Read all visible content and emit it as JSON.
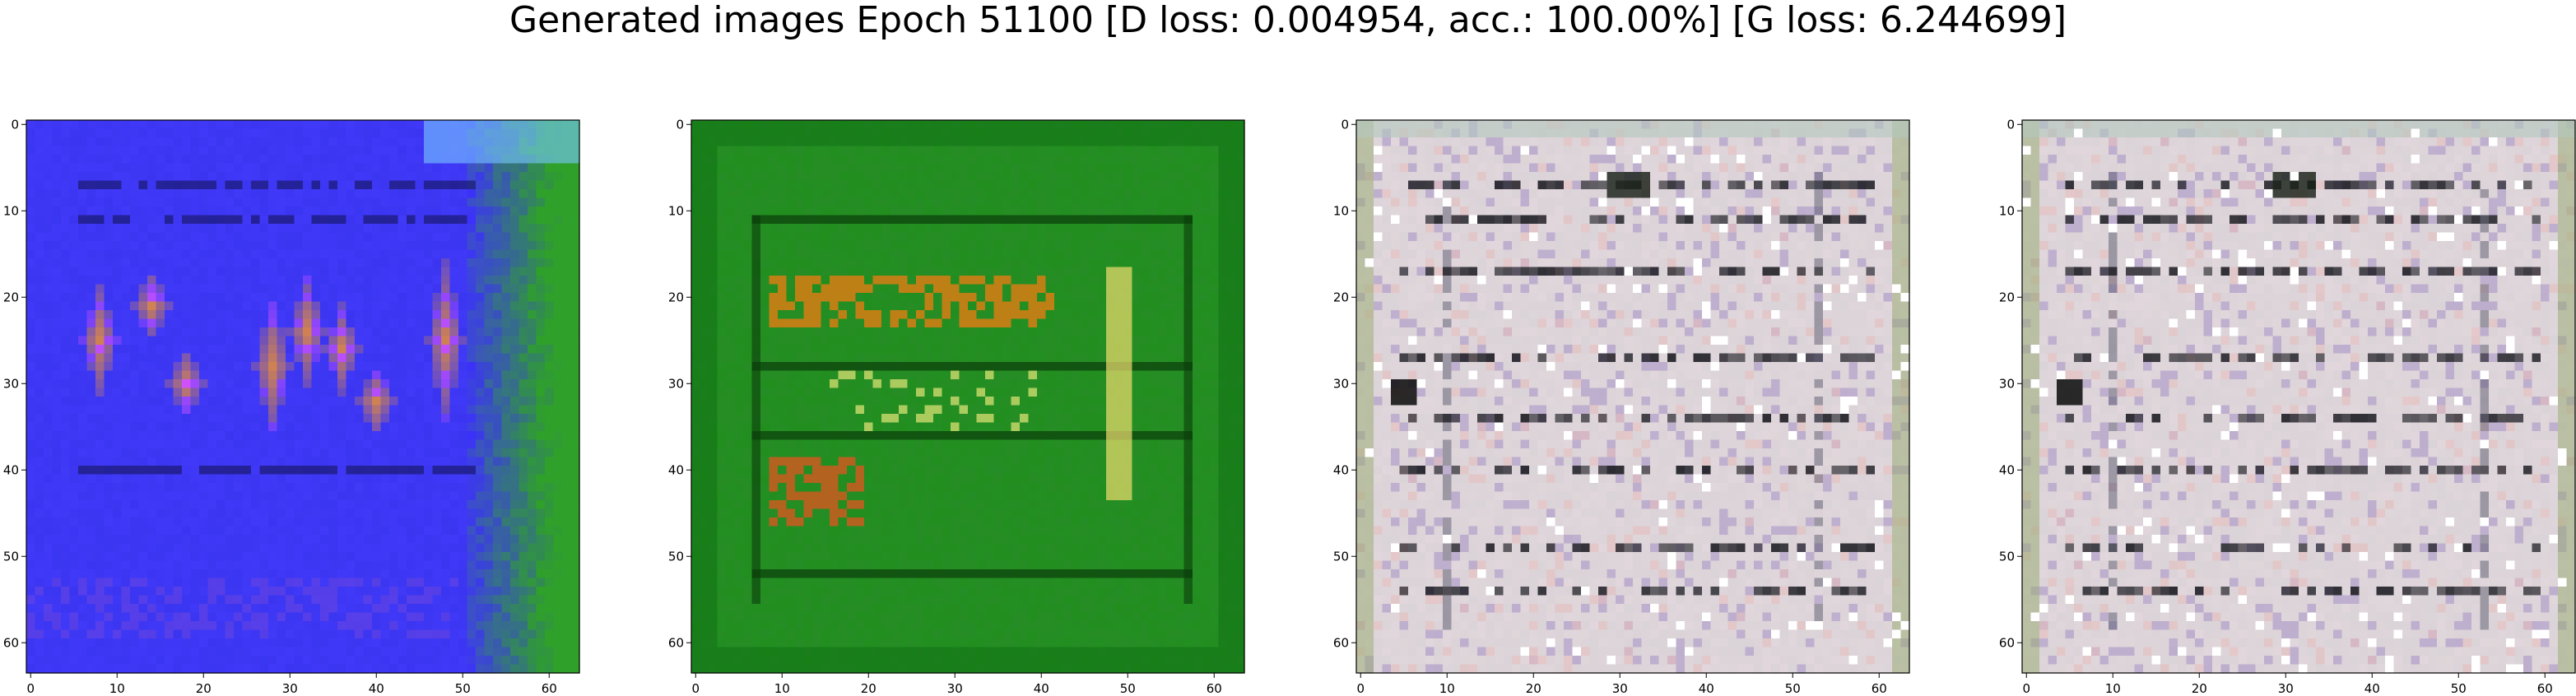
{
  "figure": {
    "title": "Generated images Epoch 51100 [D loss: 0.004954, acc.: 100.00%] [G loss: 6.244699]"
  },
  "panels": [
    {
      "name": "panel-1",
      "palette": "blue",
      "colors": {
        "base": "#3a35f0",
        "accent": "#ff9a1e",
        "edge": "#2fa02a"
      }
    },
    {
      "name": "panel-2",
      "palette": "green",
      "colors": {
        "base": "#1f8f1c",
        "accent": "#ff7a10",
        "edge": "#0e6e12"
      }
    },
    {
      "name": "panel-3",
      "palette": "gray",
      "colors": {
        "base": "#d9d2d6",
        "accent": "#1b1b22",
        "edge": "#b9c8c0"
      }
    },
    {
      "name": "panel-4",
      "palette": "gray",
      "colors": {
        "base": "#d9d2d6",
        "accent": "#1b1b22",
        "edge": "#b9c8c0"
      }
    }
  ],
  "axes": {
    "x_ticks": [
      "0",
      "10",
      "20",
      "30",
      "40",
      "50",
      "60"
    ],
    "y_ticks": [
      "0",
      "10",
      "20",
      "30",
      "40",
      "50",
      "60"
    ]
  }
}
